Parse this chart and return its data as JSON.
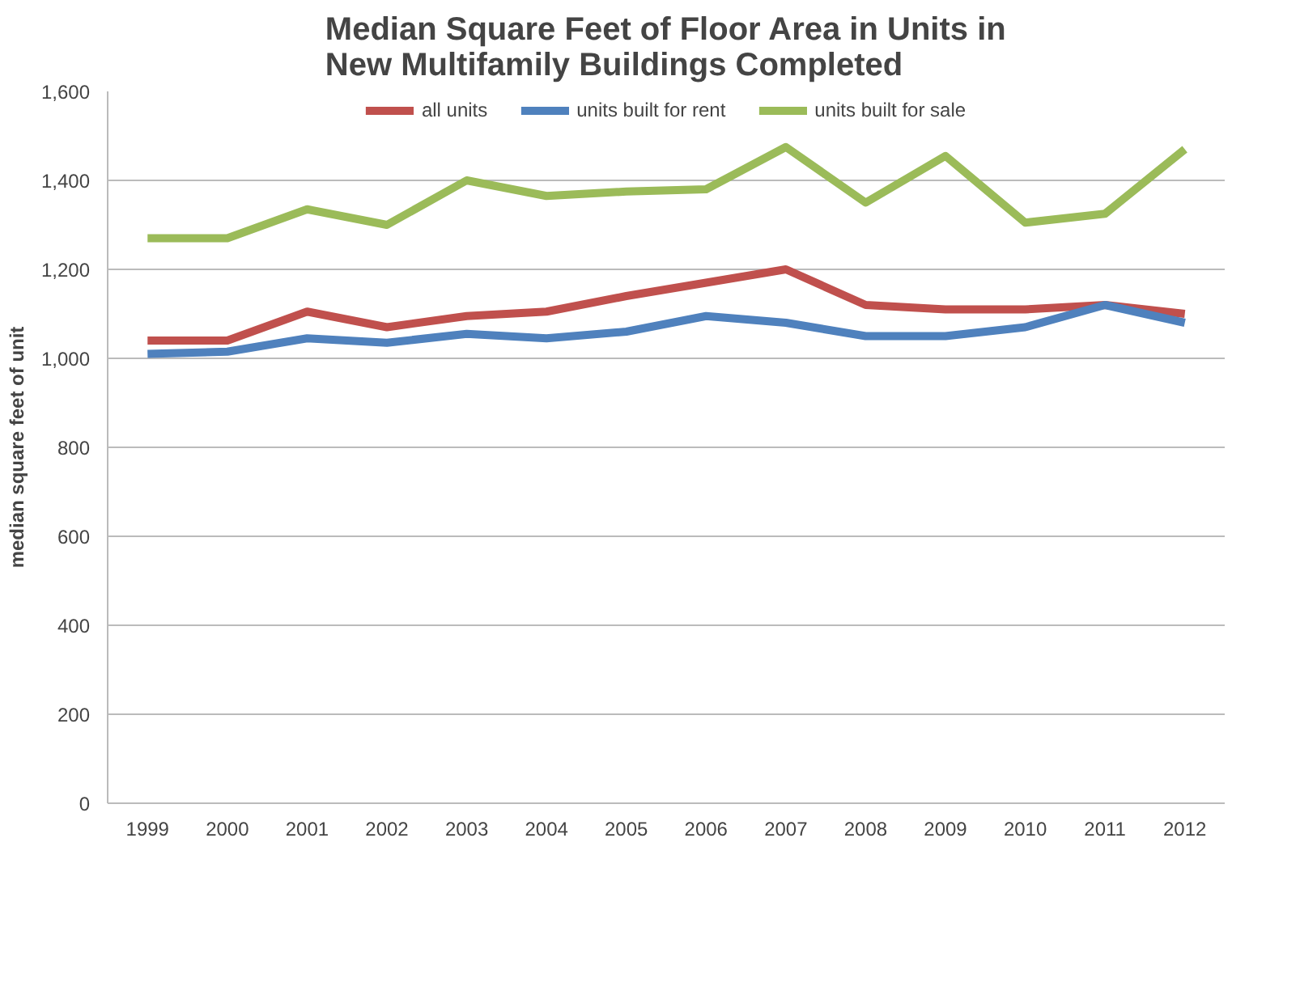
{
  "chart_data": {
    "type": "line",
    "title": "Median Square Feet of Floor Area in Units in\nNew Multifamily Buildings Completed",
    "ylabel": "median square feet of unit",
    "categories": [
      "1999",
      "2000",
      "2001",
      "2002",
      "2003",
      "2004",
      "2005",
      "2006",
      "2007",
      "2008",
      "2009",
      "2010",
      "2011",
      "2012"
    ],
    "series": [
      {
        "name": "all units",
        "color": "#c0504d",
        "values": [
          1040,
          1040,
          1105,
          1070,
          1095,
          1105,
          1140,
          1170,
          1200,
          1120,
          1110,
          1110,
          1120,
          1100
        ]
      },
      {
        "name": "units built for rent",
        "color": "#4f81bd",
        "values": [
          1010,
          1015,
          1045,
          1035,
          1055,
          1045,
          1060,
          1095,
          1080,
          1050,
          1050,
          1070,
          1120,
          1080
        ]
      },
      {
        "name": "units built for sale",
        "color": "#9bbb59",
        "values": [
          1270,
          1270,
          1335,
          1300,
          1400,
          1365,
          1375,
          1380,
          1475,
          1350,
          1455,
          1305,
          1325,
          1470
        ]
      }
    ],
    "ylim": [
      0,
      1600
    ],
    "yticks": [
      0,
      {
        "value": 200,
        "label": "200"
      },
      {
        "value": 400,
        "label": "400"
      },
      {
        "value": 600,
        "label": "600"
      },
      {
        "value": 800,
        "label": "800"
      },
      {
        "value": 1000,
        "label": "1,000"
      },
      {
        "value": 1200,
        "label": "1,200"
      },
      {
        "value": 1400,
        "label": "1,400"
      },
      {
        "value": 1600,
        "label": "1,600"
      }
    ],
    "grid": "y",
    "legend": "top",
    "marker": "none",
    "line_style": "solid"
  }
}
